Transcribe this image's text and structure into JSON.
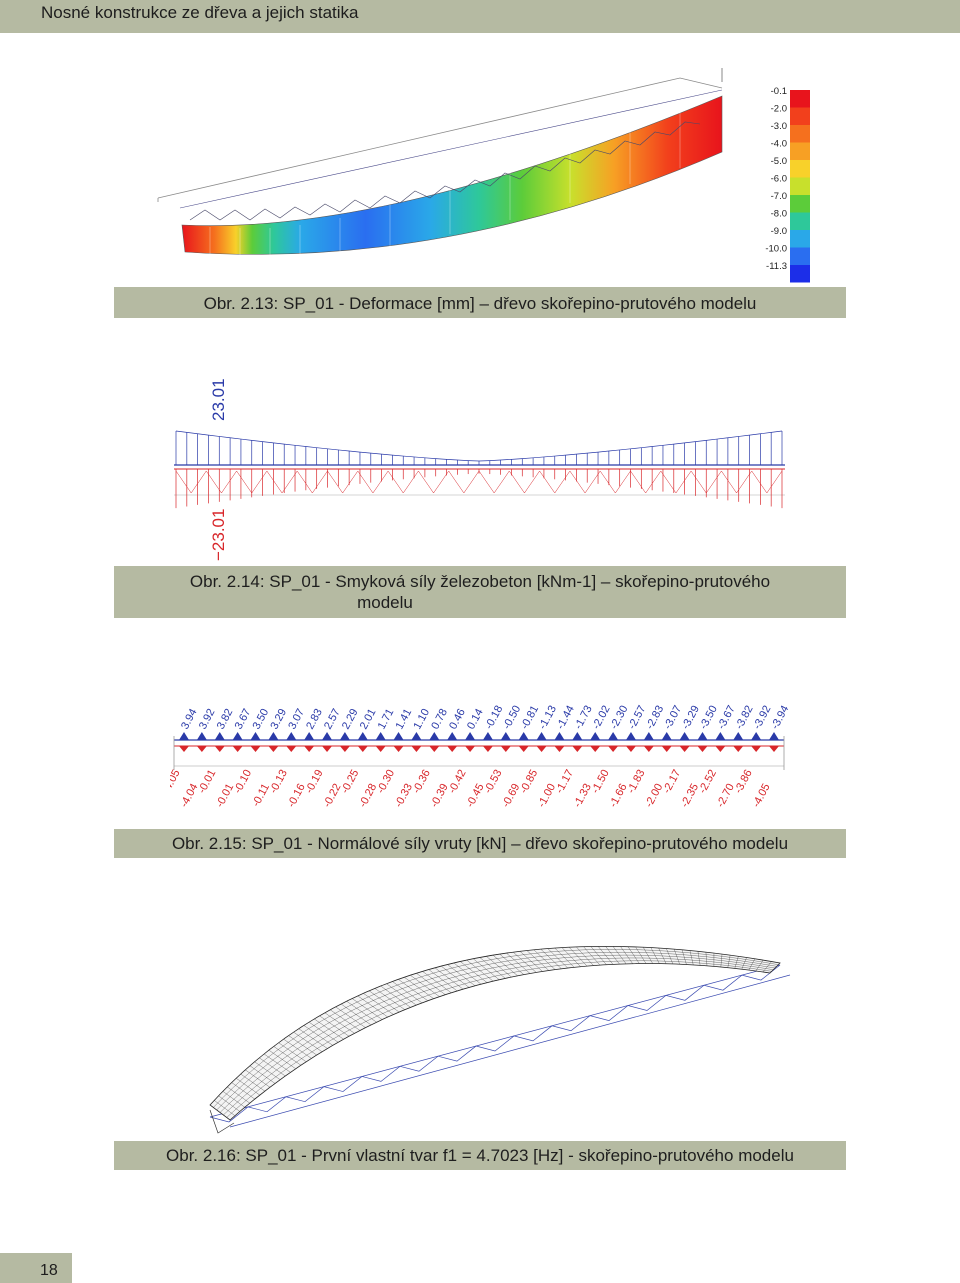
{
  "header": {
    "title": "Nosné konstrukce ze dřeva a jejich statika"
  },
  "figures": [
    {
      "caption": "Obr. 2.13: SP_01 - Deformace [mm] – dřevo skořepino-prutového modelu",
      "legend": {
        "values": [
          "-0.1",
          "-2.0",
          "-3.0",
          "-4.0",
          "-5.0",
          "-6.0",
          "-7.0",
          "-8.0",
          "-9.0",
          "-10.0",
          "-11.3"
        ],
        "colors": [
          "#e8141c",
          "#f2401c",
          "#f5701e",
          "#f7a024",
          "#f8d12a",
          "#c8e02c",
          "#5ccc3a",
          "#2ec89a",
          "#2aa8e8",
          "#2a6ef0",
          "#1c2ee8"
        ]
      }
    },
    {
      "caption_line1": "Obr. 2.14: SP_01 - Smyková síly železobeton [kNm-1] – skořepino-prutového",
      "caption_line2": "modelu",
      "max_label": "23.01",
      "min_label": "−23.01"
    },
    {
      "caption": "Obr. 2.15: SP_01 - Normálové síly vruty [kN] – dřevo skořepino-prutového modelu",
      "top_labels": [
        "3.94",
        "3.92",
        "3.82",
        "3.67",
        "3.50",
        "3.29",
        "3.07",
        "2.83",
        "2.57",
        "2.29",
        "2.01",
        "1.71",
        "1.41",
        "1.10",
        "0.78",
        "0.46",
        "0.14",
        "-0.18",
        "-0.50",
        "-0.81",
        "-1.13",
        "-1.44",
        "-1.73",
        "-2.02",
        "-2.30",
        "-2.57",
        "-2.83",
        "-3.07",
        "-3.29",
        "-3.50",
        "-3.67",
        "-3.82",
        "-3.92",
        "-3.94"
      ],
      "bottom_labels": [
        "-4.05",
        "-4.04",
        "-0.01",
        "-0.01",
        "-0.10",
        "-0.11",
        "-0.13",
        "-0.16",
        "-0.19",
        "-0.22",
        "-0.25",
        "-0.28",
        "-0.30",
        "-0.33",
        "-0.36",
        "-0.39",
        "-0.42",
        "-0.45",
        "-0.53",
        "-0.69",
        "-0.85",
        "-1.00",
        "-1.17",
        "-1.33",
        "-1.50",
        "-1.66",
        "-1.83",
        "-2.00",
        "-2.17",
        "-2.35",
        "-2.52",
        "-2.70",
        "-3.86",
        "-4.05"
      ]
    },
    {
      "caption": "Obr. 2.16: SP_01 - První vlastní tvar  f1 = 4.7023 [Hz] - skořepino-prutového modelu"
    }
  ],
  "footer": {
    "page_number": "18"
  }
}
